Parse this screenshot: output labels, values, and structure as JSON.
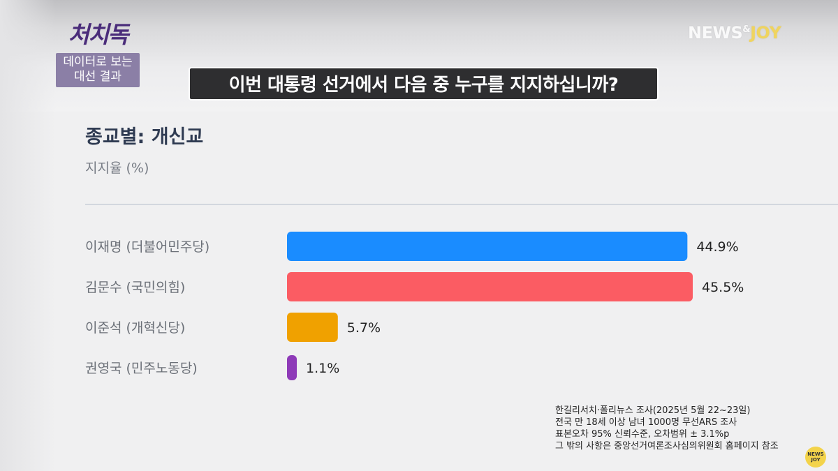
{
  "brand": {
    "logo": "처치독",
    "subtitle_line1": "데이터로 보는",
    "subtitle_line2": "대선 결과"
  },
  "channel_logo": {
    "main": "NEWS",
    "amp": "&",
    "joy": "JOY"
  },
  "question": "이번 대통령 선거에서 다음 중 누구를 지지하십니까?",
  "chart_data": {
    "type": "bar",
    "orientation": "horizontal",
    "title": "종교별: 개신교",
    "subtitle": "지지율 (%)",
    "categories": [
      "이재명 (더불어민주당)",
      "김문수 (국민의힘)",
      "이준석 (개혁신당)",
      "권영국 (민주노동당)"
    ],
    "values": [
      44.9,
      45.5,
      5.7,
      1.1
    ],
    "value_labels": [
      "44.9%",
      "45.5%",
      "5.7%",
      "1.1%"
    ],
    "colors": [
      "#1a8cff",
      "#fb5c63",
      "#f0a100",
      "#8e3ab8"
    ],
    "xlim": [
      0,
      45.5
    ],
    "grid": false,
    "legend": "none"
  },
  "notes": [
    "한길리서치·폴리뉴스 조사(2025년 5월 22~23일)",
    "전국 만 18세 이상 남녀 1000명 무선ARS 조사",
    "표본오차 95% 신뢰수준, 오차범위 ± 3.1%p",
    "그 밖의 사항은 중앙선거여론조사심의위원회 홈페이지 참조"
  ],
  "corner_badge": {
    "line1": "NEWS",
    "line2": "JOY"
  }
}
